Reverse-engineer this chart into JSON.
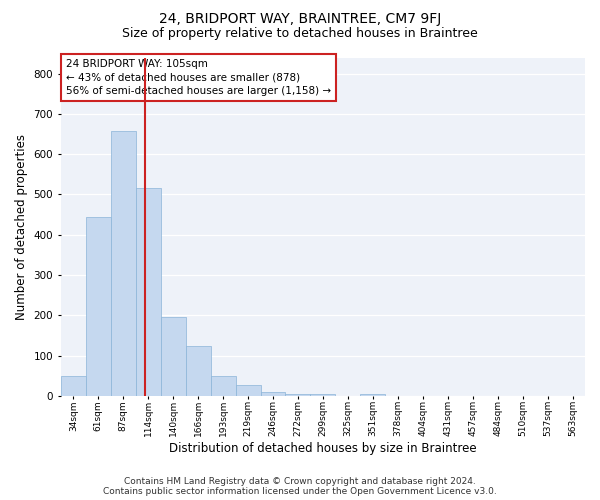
{
  "title": "24, BRIDPORT WAY, BRAINTREE, CM7 9FJ",
  "subtitle": "Size of property relative to detached houses in Braintree",
  "xlabel": "Distribution of detached houses by size in Braintree",
  "ylabel": "Number of detached properties",
  "categories": [
    "34sqm",
    "61sqm",
    "87sqm",
    "114sqm",
    "140sqm",
    "166sqm",
    "193sqm",
    "219sqm",
    "246sqm",
    "272sqm",
    "299sqm",
    "325sqm",
    "351sqm",
    "378sqm",
    "404sqm",
    "431sqm",
    "457sqm",
    "484sqm",
    "510sqm",
    "537sqm",
    "563sqm"
  ],
  "values": [
    50,
    444,
    658,
    515,
    197,
    125,
    50,
    27,
    10,
    5,
    5,
    0,
    5,
    0,
    0,
    0,
    0,
    0,
    0,
    0,
    0
  ],
  "bar_color": "#c5d8ef",
  "bar_edge_color": "#8ab4d8",
  "vline_x": 2.87,
  "vline_color": "#cc2222",
  "annotation_text": "24 BRIDPORT WAY: 105sqm\n← 43% of detached houses are smaller (878)\n56% of semi-detached houses are larger (1,158) →",
  "annotation_box_color": "#ffffff",
  "annotation_box_edge": "#cc2222",
  "ylim": [
    0,
    840
  ],
  "yticks": [
    0,
    100,
    200,
    300,
    400,
    500,
    600,
    700,
    800
  ],
  "bg_color": "#eef2f9",
  "grid_color": "#ffffff",
  "footer": "Contains HM Land Registry data © Crown copyright and database right 2024.\nContains public sector information licensed under the Open Government Licence v3.0.",
  "title_fontsize": 10,
  "subtitle_fontsize": 9,
  "xlabel_fontsize": 8.5,
  "ylabel_fontsize": 8.5,
  "annot_fontsize": 7.5,
  "footer_fontsize": 6.5
}
